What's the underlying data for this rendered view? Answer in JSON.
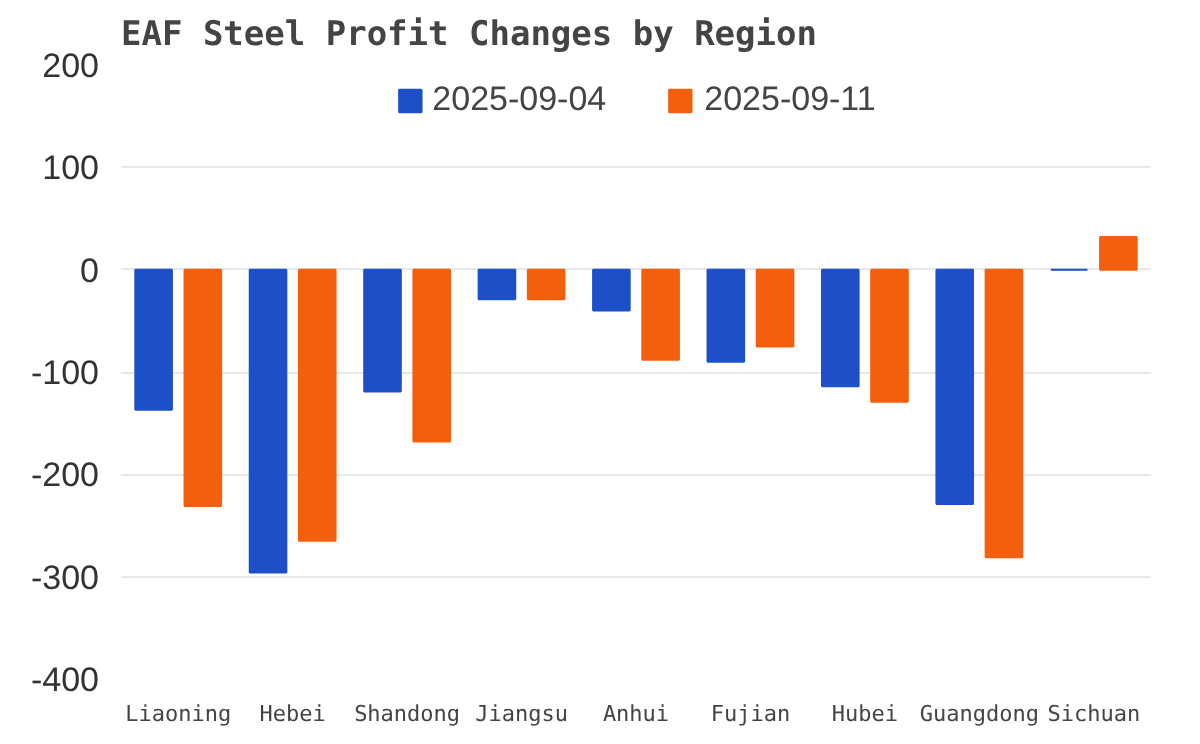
{
  "chart_data": {
    "type": "bar",
    "title": "EAF Steel Profit Changes by Region",
    "categories": [
      "Liaoning",
      "Hebei",
      "Shandong",
      "Jiangsu",
      "Anhui",
      "Fujian",
      "Hubei",
      "Guangdong",
      "Sichuan"
    ],
    "series": [
      {
        "name": "2025-09-04",
        "color": "#1d50c8",
        "values": [
          -137,
          -296,
          -119,
          -29,
          -40,
          -90,
          -114,
          -229,
          0
        ]
      },
      {
        "name": "2025-09-11",
        "color": "#f35f0c",
        "values": [
          -231,
          -265,
          -168,
          -29,
          -88,
          -75,
          -129,
          -281,
          32
        ]
      }
    ],
    "ylim": [
      -400,
      200
    ],
    "yticks": [
      -400,
      -300,
      -200,
      -100,
      0,
      100,
      200
    ],
    "grid": "y",
    "legend": "top"
  }
}
